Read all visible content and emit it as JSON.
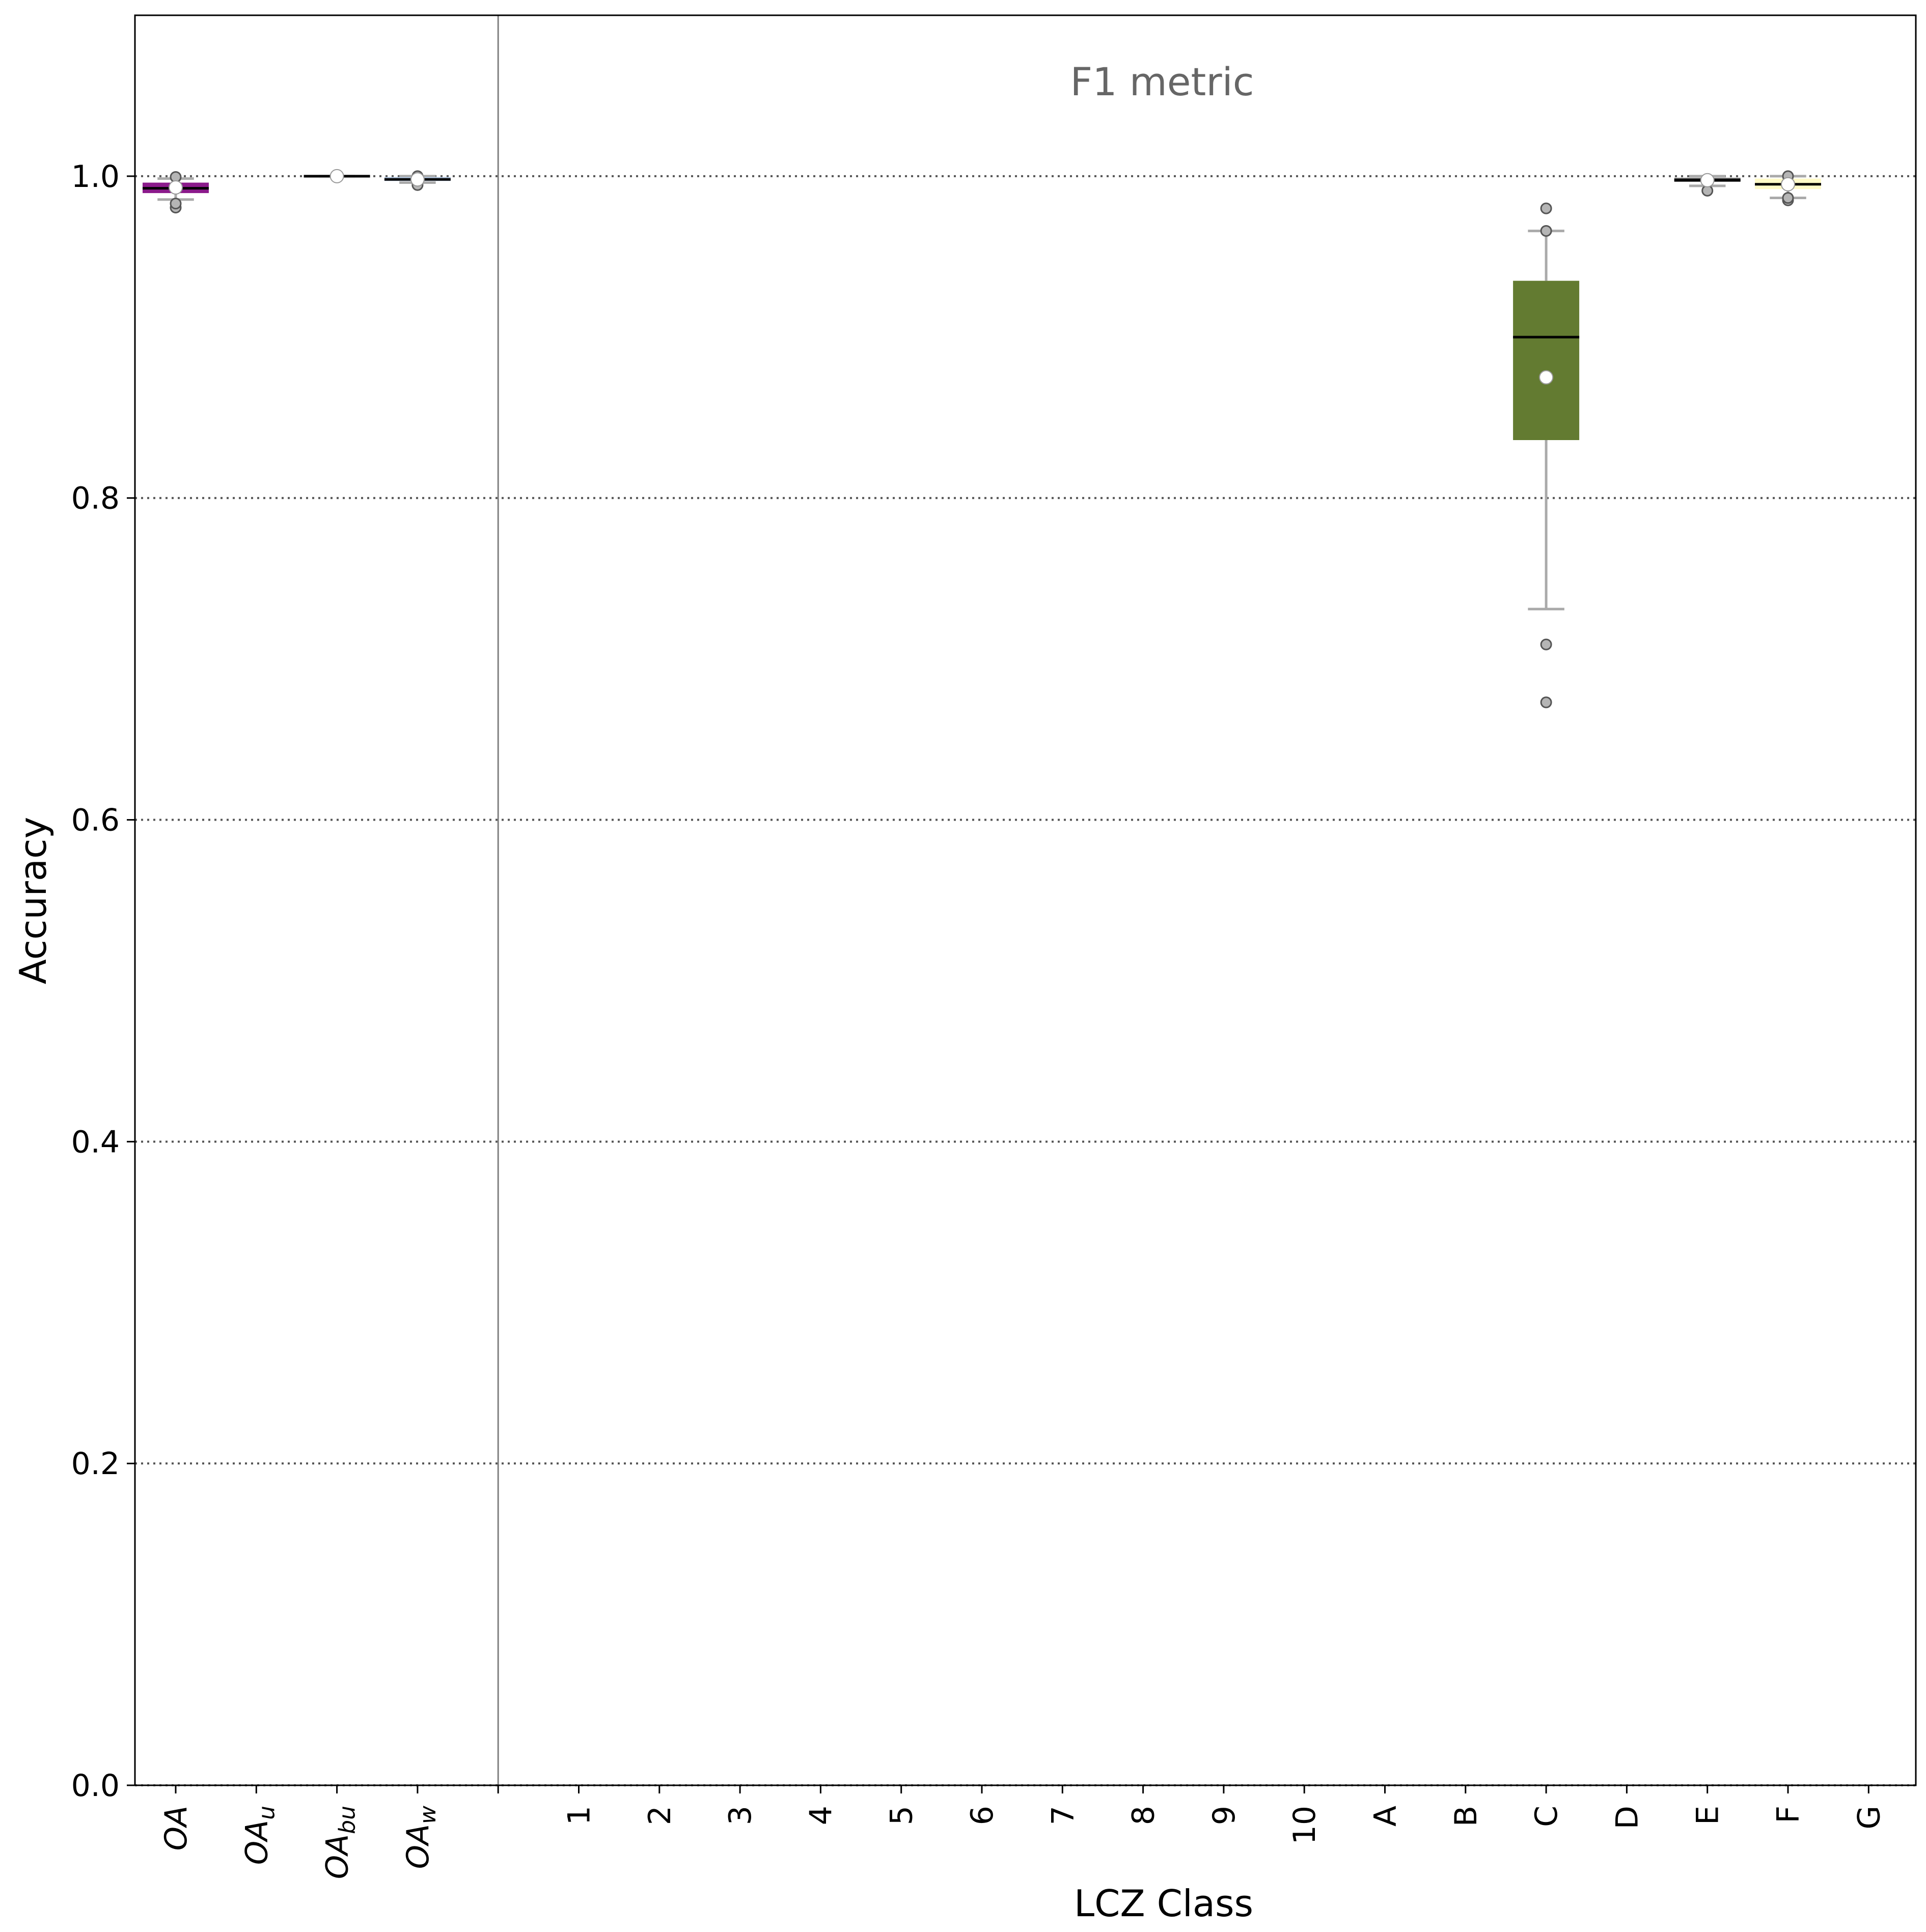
{
  "chart_data": {
    "type": "box",
    "annotation": "F1 metric",
    "xlabel": "LCZ Class",
    "ylabel": "Accuracy",
    "ylim": [
      0.0,
      1.1
    ],
    "yticks": [
      "0.0",
      "0.2",
      "0.4",
      "0.6",
      "0.8",
      "1.0"
    ],
    "grid": "horizontal dotted",
    "categories": [
      {
        "label": "OA",
        "sub": "",
        "italic": true
      },
      {
        "label": "OA",
        "sub": "u",
        "italic": true
      },
      {
        "label": "OA",
        "sub": "bu",
        "italic": true
      },
      {
        "label": "OA",
        "sub": "w",
        "italic": true
      },
      {
        "label": "1"
      },
      {
        "label": "2"
      },
      {
        "label": "3"
      },
      {
        "label": "4"
      },
      {
        "label": "5"
      },
      {
        "label": "6"
      },
      {
        "label": "7"
      },
      {
        "label": "8"
      },
      {
        "label": "9"
      },
      {
        "label": "10"
      },
      {
        "label": "A"
      },
      {
        "label": "B"
      },
      {
        "label": "C"
      },
      {
        "label": "D"
      },
      {
        "label": "E"
      },
      {
        "label": "F"
      },
      {
        "label": "G"
      }
    ],
    "boxes": [
      {
        "category": 0,
        "color": "#8b1a8b",
        "q1": 0.9895,
        "median": 0.9925,
        "q3": 0.996,
        "whislo": 0.9855,
        "whishi": 0.9985,
        "mean": 0.993,
        "fliers": [
          0.9805,
          0.983,
          0.9995
        ]
      },
      {
        "category": 2,
        "color": "#e0e0e0",
        "q1": 0.9995,
        "median": 1.0,
        "q3": 1.0,
        "whislo": 0.9995,
        "whishi": 1.0,
        "mean": 1.0,
        "fliers": []
      },
      {
        "category": 3,
        "color": "#b0c4de",
        "q1": 0.997,
        "median": 0.998,
        "q3": 0.9995,
        "whislo": 0.996,
        "whishi": 1.0,
        "mean": 0.998,
        "fliers": [
          0.9945,
          1.0
        ]
      },
      {
        "category": 16,
        "color": "#637b31",
        "q1": 0.836,
        "median": 0.9,
        "q3": 0.935,
        "whislo": 0.731,
        "whishi": 0.966,
        "mean": 0.875,
        "fliers": [
          0.673,
          0.709,
          0.966,
          0.98
        ]
      },
      {
        "category": 18,
        "color": "#6a6a6a",
        "q1": 0.9965,
        "median": 0.9975,
        "q3": 0.999,
        "whislo": 0.994,
        "whishi": 1.0,
        "mean": 0.9975,
        "fliers": [
          0.991
        ]
      },
      {
        "category": 19,
        "color": "#fffac8",
        "q1": 0.992,
        "median": 0.995,
        "q3": 0.9985,
        "whislo": 0.9865,
        "whishi": 1.0,
        "mean": 0.995,
        "fliers": [
          0.985,
          0.9865,
          1.0
        ]
      }
    ]
  }
}
